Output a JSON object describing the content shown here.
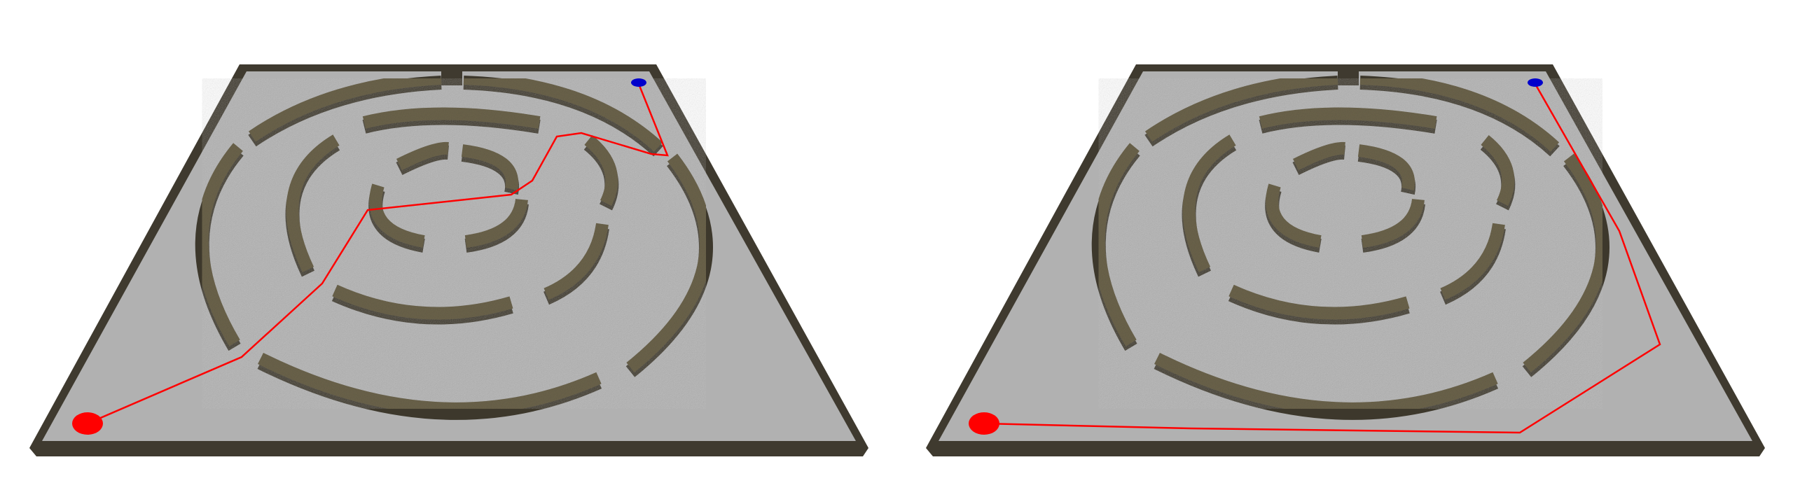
{
  "scene": {
    "panels": [
      {
        "id": "left",
        "path_shape": "through-maze"
      },
      {
        "id": "right",
        "path_shape": "around-maze"
      }
    ],
    "colors": {
      "floor": "#b1b1b1",
      "wall_top": "#69614a",
      "wall_side": "#3d382c",
      "border": "#4b4538",
      "path": "#ff0000",
      "start_marker": "#ff0000",
      "goal_marker": "#0000cc"
    }
  }
}
